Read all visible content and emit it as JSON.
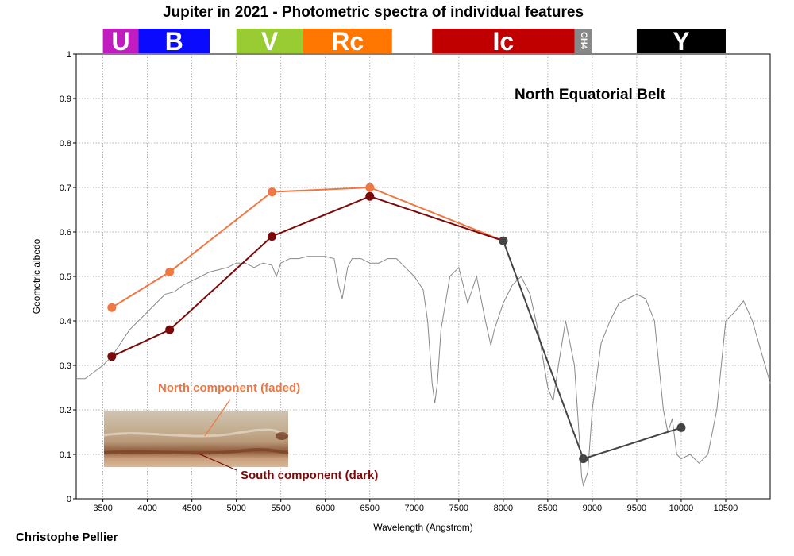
{
  "chart_data": {
    "type": "line",
    "title": "Jupiter in 2021 - Photometric spectra of individual features",
    "feature_label": "North Equatorial Belt",
    "xlabel": "Wavelength (Angstrom)",
    "ylabel": "Geometric albedo",
    "xlim": [
      3200,
      11000
    ],
    "ylim": [
      0,
      1
    ],
    "x_ticks": [
      3500,
      4000,
      4500,
      5000,
      5500,
      6000,
      6500,
      7000,
      7500,
      8000,
      8500,
      9000,
      9500,
      10000,
      10500
    ],
    "y_ticks": [
      0,
      0.1,
      0.2,
      0.3,
      0.4,
      0.5,
      0.6,
      0.7,
      0.8,
      0.9,
      1
    ],
    "y_tick_labels": [
      "0",
      "0.1",
      "0.2",
      "0.3",
      "0.4",
      "0.5",
      "0.6",
      "0.7",
      "0.8",
      "0.9",
      "1"
    ],
    "grid": true,
    "filter_bands": [
      {
        "label": "U",
        "x0": 3500,
        "x1": 3900,
        "color": "#c01cc0"
      },
      {
        "label": "B",
        "x0": 3900,
        "x1": 4700,
        "color": "#0a0aff"
      },
      {
        "label": "V",
        "x0": 5000,
        "x1": 5750,
        "color": "#99cc33"
      },
      {
        "label": "Rc",
        "x0": 5750,
        "x1": 6750,
        "color": "#ff7700"
      },
      {
        "label": "Ic",
        "x0": 7200,
        "x1": 8800,
        "color": "#c00000"
      },
      {
        "label": "CH4",
        "x0": 8800,
        "x1": 9000,
        "color": "#888888"
      },
      {
        "label": "Y",
        "x0": 9500,
        "x1": 10500,
        "color": "#000000"
      }
    ],
    "series": [
      {
        "name": "North component (faded)",
        "color": "#ee7744",
        "x": [
          3600,
          4250,
          5400,
          6500,
          8000
        ],
        "y": [
          0.43,
          0.51,
          0.69,
          0.7,
          0.58
        ]
      },
      {
        "name": "South component (dark)",
        "color": "#7a0a0a",
        "x": [
          3600,
          4250,
          5400,
          6500,
          8000
        ],
        "y": [
          0.32,
          0.38,
          0.59,
          0.68,
          0.58
        ]
      },
      {
        "color": "#444444",
        "x": [
          8000,
          8900,
          10000
        ],
        "y": [
          0.58,
          0.09,
          0.16
        ]
      }
    ],
    "reference_spectrum": {
      "color": "#888888",
      "x": [
        3200,
        3300,
        3400,
        3500,
        3600,
        3700,
        3800,
        3900,
        4000,
        4100,
        4200,
        4300,
        4400,
        4500,
        4600,
        4700,
        4800,
        4900,
        5000,
        5100,
        5200,
        5300,
        5400,
        5450,
        5500,
        5600,
        5700,
        5800,
        5900,
        6000,
        6100,
        6150,
        6190,
        6250,
        6300,
        6400,
        6500,
        6600,
        6700,
        6800,
        6900,
        7000,
        7100,
        7150,
        7200,
        7230,
        7260,
        7300,
        7400,
        7500,
        7550,
        7600,
        7700,
        7800,
        7860,
        7900,
        8000,
        8050,
        8100,
        8200,
        8300,
        8400,
        8500,
        8560,
        8620,
        8700,
        8800,
        8850,
        8880,
        8900,
        8950,
        9000,
        9100,
        9200,
        9300,
        9400,
        9500,
        9600,
        9700,
        9750,
        9800,
        9850,
        9900,
        9950,
        10000,
        10100,
        10200,
        10300,
        10400,
        10500,
        10600,
        10700,
        10800,
        10900,
        11000
      ],
      "y": [
        0.27,
        0.27,
        0.285,
        0.3,
        0.32,
        0.35,
        0.38,
        0.4,
        0.42,
        0.44,
        0.46,
        0.465,
        0.48,
        0.49,
        0.5,
        0.51,
        0.515,
        0.52,
        0.53,
        0.53,
        0.52,
        0.53,
        0.525,
        0.5,
        0.53,
        0.54,
        0.54,
        0.545,
        0.545,
        0.545,
        0.54,
        0.48,
        0.45,
        0.52,
        0.54,
        0.54,
        0.53,
        0.53,
        0.54,
        0.54,
        0.52,
        0.5,
        0.47,
        0.4,
        0.26,
        0.215,
        0.26,
        0.38,
        0.5,
        0.52,
        0.48,
        0.44,
        0.5,
        0.4,
        0.345,
        0.38,
        0.44,
        0.46,
        0.48,
        0.5,
        0.46,
        0.37,
        0.25,
        0.22,
        0.3,
        0.4,
        0.3,
        0.15,
        0.05,
        0.03,
        0.06,
        0.2,
        0.35,
        0.4,
        0.44,
        0.45,
        0.46,
        0.45,
        0.4,
        0.3,
        0.2,
        0.15,
        0.18,
        0.1,
        0.09,
        0.1,
        0.08,
        0.1,
        0.2,
        0.4,
        0.42,
        0.445,
        0.4,
        0.33,
        0.26
      ]
    },
    "annotations": [
      {
        "text": "North component (faded)",
        "color": "#ee7744"
      },
      {
        "text": "South component (dark)",
        "color": "#7a0a0a"
      }
    ],
    "credit": "Christophe Pellier"
  }
}
